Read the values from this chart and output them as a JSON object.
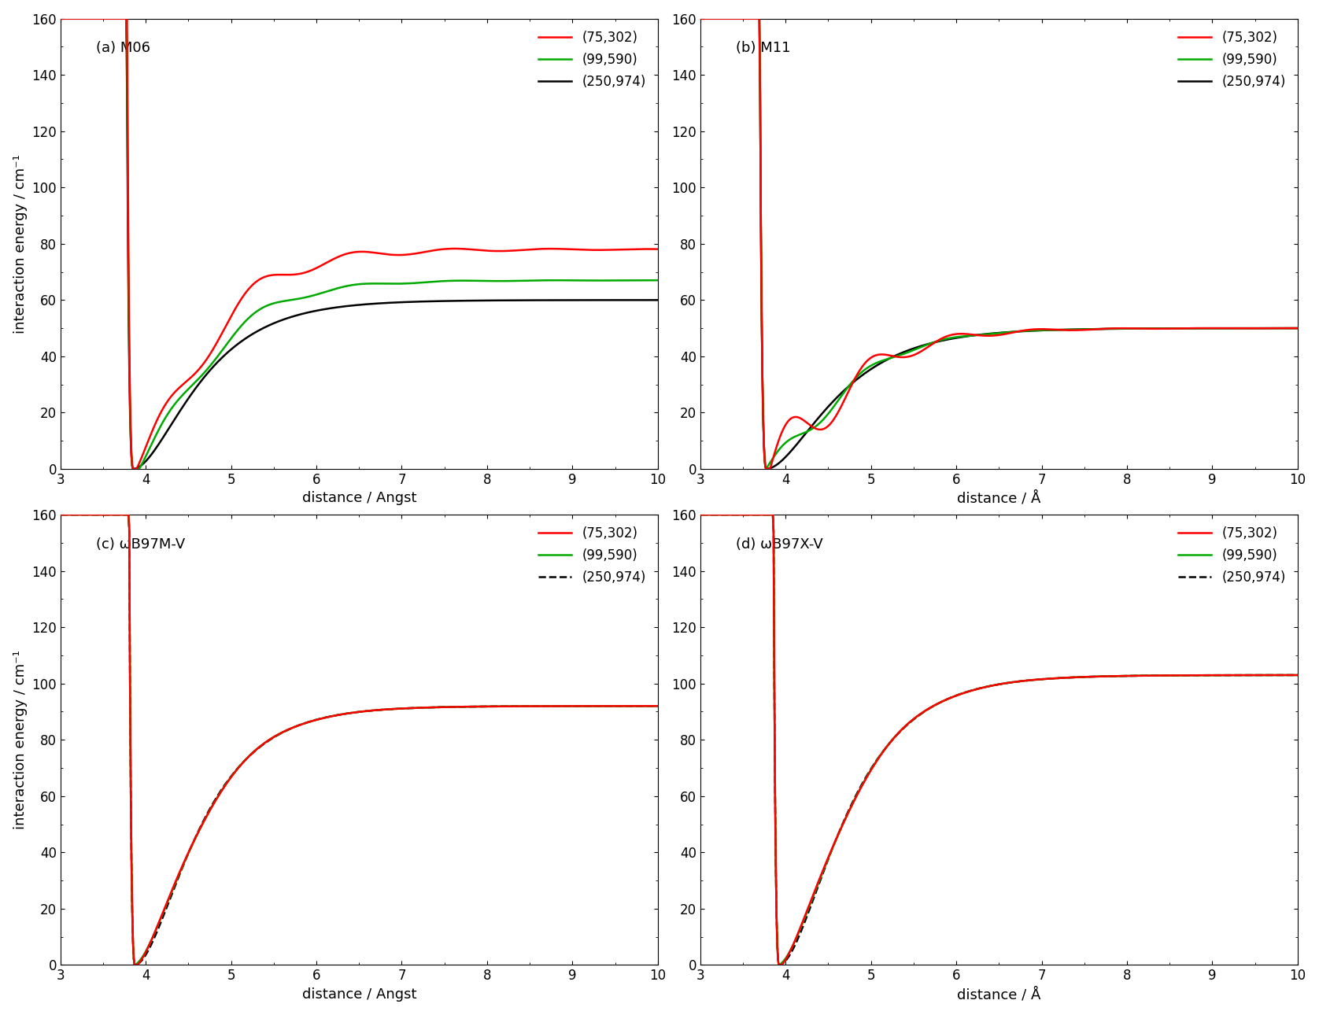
{
  "panels": [
    {
      "label": "(a) M06",
      "xlabel": "distance / Angst",
      "ylabel": "interaction energy / cm⁻¹",
      "xlim": [
        3,
        10
      ],
      "ylim": [
        0,
        160
      ],
      "yticks": [
        0,
        20,
        40,
        60,
        80,
        100,
        120,
        140,
        160
      ],
      "legend_linestyle": [
        "solid",
        "solid",
        "solid"
      ],
      "line_colors": [
        "#ff0000",
        "#00aa00",
        "#000000"
      ]
    },
    {
      "label": "(b) M11",
      "xlabel": "distance / Å",
      "ylabel": "",
      "xlim": [
        3,
        10
      ],
      "ylim": [
        0,
        160
      ],
      "yticks": [
        0,
        20,
        40,
        60,
        80,
        100,
        120,
        140,
        160
      ],
      "legend_linestyle": [
        "solid",
        "solid",
        "solid"
      ],
      "line_colors": [
        "#ff0000",
        "#00aa00",
        "#000000"
      ]
    },
    {
      "label": "(c) ωB97M-V",
      "xlabel": "distance / Angst",
      "ylabel": "interaction energy / cm⁻¹",
      "xlim": [
        3,
        10
      ],
      "ylim": [
        0,
        160
      ],
      "yticks": [
        0,
        20,
        40,
        60,
        80,
        100,
        120,
        140,
        160
      ],
      "legend_linestyle": [
        "solid",
        "solid",
        "dashed"
      ],
      "line_colors": [
        "#ff0000",
        "#00aa00",
        "#000000"
      ]
    },
    {
      "label": "(d) ωB97X-V",
      "xlabel": "distance / Å",
      "ylabel": "",
      "xlim": [
        3,
        10
      ],
      "ylim": [
        0,
        160
      ],
      "yticks": [
        0,
        20,
        40,
        60,
        80,
        100,
        120,
        140,
        160
      ],
      "legend_linestyle": [
        "solid",
        "solid",
        "dashed"
      ],
      "line_colors": [
        "#ff0000",
        "#00aa00",
        "#000000"
      ]
    }
  ],
  "legend_labels": [
    "(75,302)",
    "(99,590)",
    "(250,974)"
  ],
  "line_width": 1.8,
  "font_size": 13
}
